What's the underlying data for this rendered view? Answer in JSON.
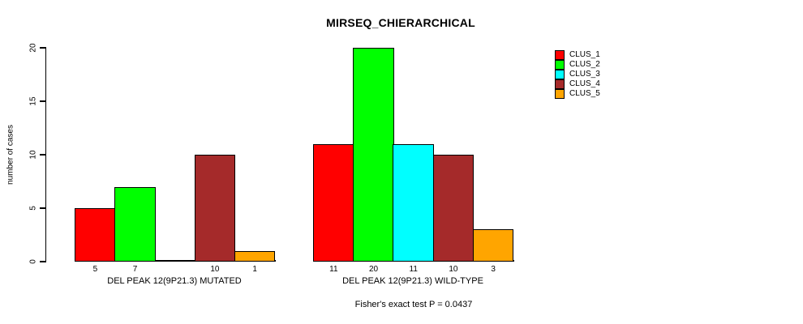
{
  "title": "MIRSEQ_CHIERARCHICAL",
  "chart_data": {
    "type": "bar",
    "title": "MIRSEQ_CHIERARCHICAL",
    "ylabel": "number of cases",
    "xlabel": "",
    "ylim": [
      0,
      20
    ],
    "yticks": [
      0,
      5,
      10,
      15,
      20
    ],
    "grid": false,
    "legend_position": "top-right",
    "categories": [
      "DEL PEAK 12(9P21.3) MUTATED",
      "DEL PEAK 12(9P21.3) WILD-TYPE"
    ],
    "series": [
      {
        "name": "CLUS_1",
        "color": "#FF0000",
        "values": [
          5,
          11
        ]
      },
      {
        "name": "CLUS_2",
        "color": "#00FF00",
        "values": [
          7,
          20
        ]
      },
      {
        "name": "CLUS_3",
        "color": "#00FFFF",
        "values": [
          0,
          11
        ]
      },
      {
        "name": "CLUS_4",
        "color": "#A52A2A",
        "values": [
          10,
          10
        ]
      },
      {
        "name": "CLUS_5",
        "color": "#FFA500",
        "values": [
          1,
          3
        ]
      }
    ],
    "bar_value_labels": {
      "shown": true,
      "hide_zero": true
    },
    "annotation": "Fisher's exact test P = 0.0437"
  }
}
